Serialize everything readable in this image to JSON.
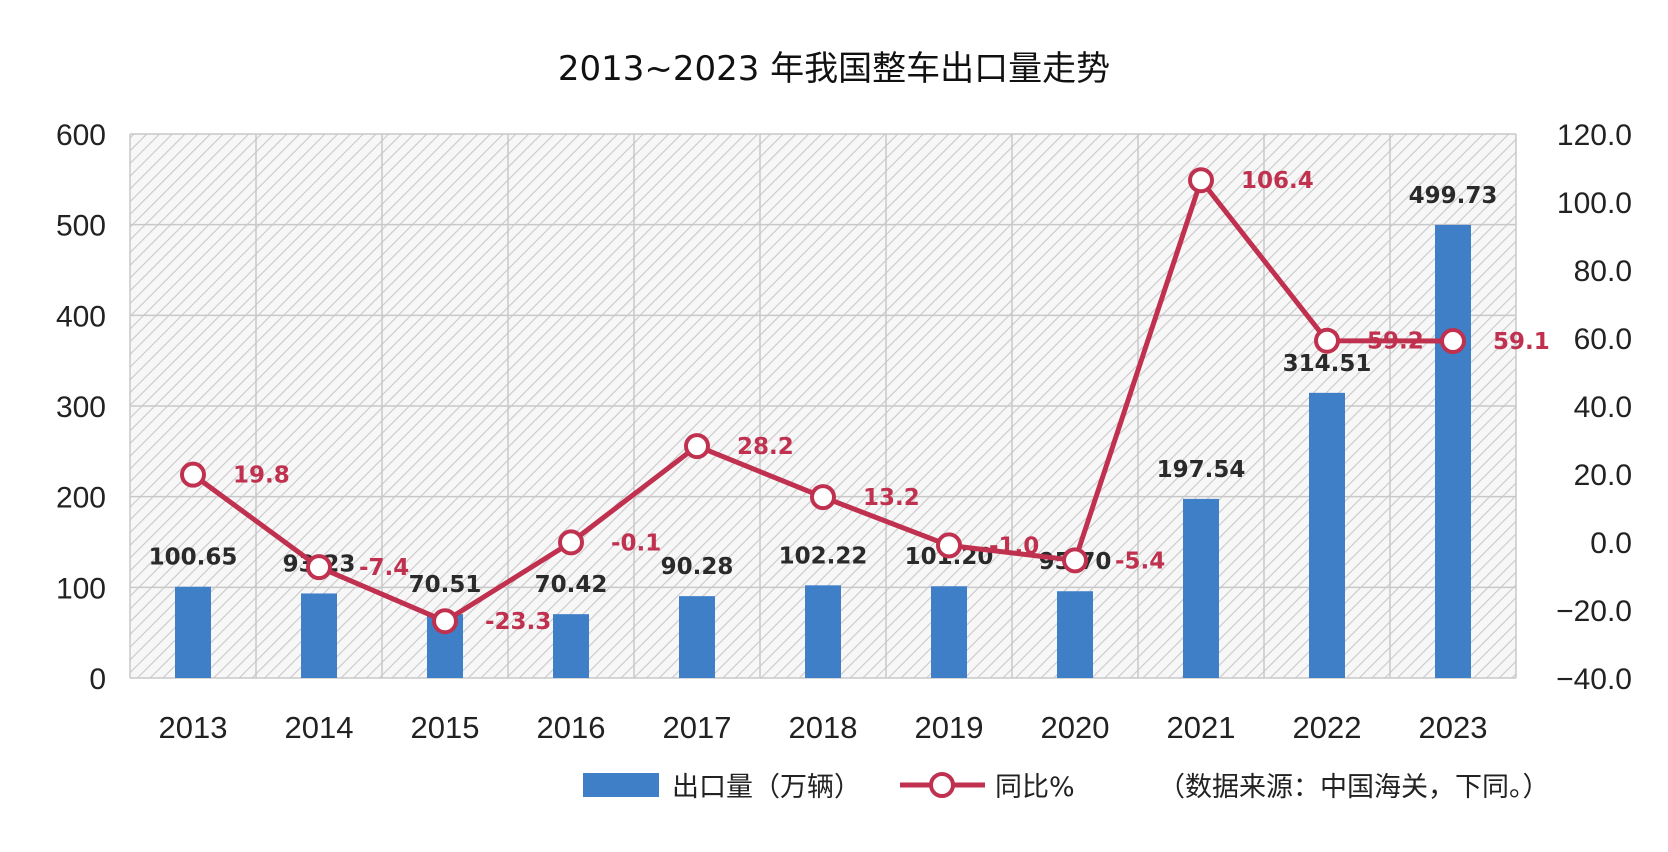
{
  "chart_data": {
    "type": "bar",
    "title": "2013~2023 年我国整车出口量走势",
    "categories": [
      "2013",
      "2014",
      "2015",
      "2016",
      "2017",
      "2018",
      "2019",
      "2020",
      "2021",
      "2022",
      "2023"
    ],
    "series": [
      {
        "name": "出口量（万辆）",
        "type": "bar",
        "axis": "left",
        "color": "#3f7fc8",
        "values": [
          100.65,
          93.23,
          70.51,
          70.42,
          90.28,
          102.22,
          101.2,
          95.7,
          197.54,
          314.51,
          499.73
        ],
        "labels": [
          "100.65",
          "93.23",
          "70.51",
          "70.42",
          "90.28",
          "102.22",
          "101.20",
          "95.70",
          "197.54",
          "314.51",
          "499.73"
        ]
      },
      {
        "name": "同比%",
        "type": "line",
        "axis": "right",
        "color": "#c0314f",
        "values": [
          19.8,
          -7.4,
          -23.3,
          -0.1,
          28.2,
          13.2,
          -1.0,
          -5.4,
          106.4,
          59.2,
          59.1
        ],
        "labels": [
          "19.8",
          "-7.4",
          "-23.3",
          "-0.1",
          "28.2",
          "13.2",
          "-1.0",
          "-5.4",
          "106.4",
          "59.2",
          "59.1"
        ]
      }
    ],
    "y_left": {
      "ylim": [
        0,
        600
      ],
      "ticks": [
        "0",
        "100",
        "200",
        "300",
        "400",
        "500",
        "600"
      ]
    },
    "y_right": {
      "ylim": [
        -40,
        120
      ],
      "ticks": [
        "−40.0",
        "−20.0",
        "0.0",
        "20.0",
        "40.0",
        "60.0",
        "80.0",
        "100.0",
        "120.0"
      ]
    },
    "grid": true,
    "legend_position": "bottom"
  },
  "note": "（数据来源：中国海关，下同。）"
}
